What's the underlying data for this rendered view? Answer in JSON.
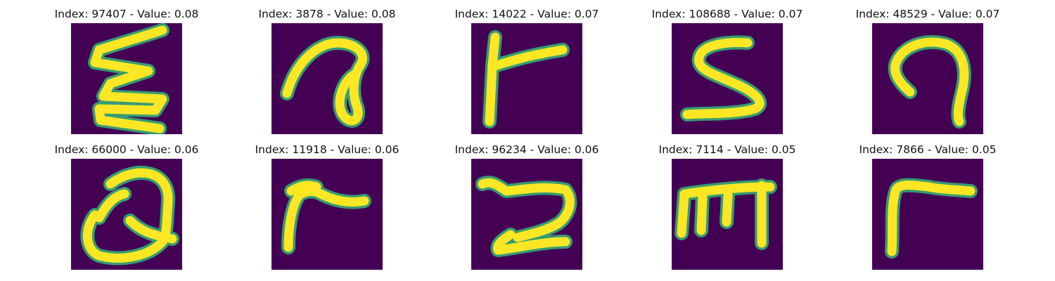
{
  "colors": {
    "background": "#440154",
    "stroke": "#fde725",
    "stroke_edge": "#35b779",
    "stroke_mid": "#b5de2b"
  },
  "panels": [
    {
      "title": "Index: 97407 - Value: 0.08",
      "glyph": "zigzag-w"
    },
    {
      "title": "Index: 3878 - Value: 0.08",
      "glyph": "loop-curl"
    },
    {
      "title": "Index: 14022 - Value: 0.07",
      "glyph": "t-bar-left"
    },
    {
      "title": "Index: 108688 - Value: 0.07",
      "glyph": "s-shape"
    },
    {
      "title": "Index: 48529 - Value: 0.07",
      "glyph": "hook-arch"
    },
    {
      "title": "Index: 66000 - Value: 0.06",
      "glyph": "q-loop"
    },
    {
      "title": "Index: 11918 - Value: 0.06",
      "glyph": "r-hook"
    },
    {
      "title": "Index: 96234 - Value: 0.06",
      "glyph": "wave-z"
    },
    {
      "title": "Index: 7114 - Value: 0.05",
      "glyph": "comb-e"
    },
    {
      "title": "Index: 7866 - Value: 0.05",
      "glyph": "gamma"
    }
  ]
}
